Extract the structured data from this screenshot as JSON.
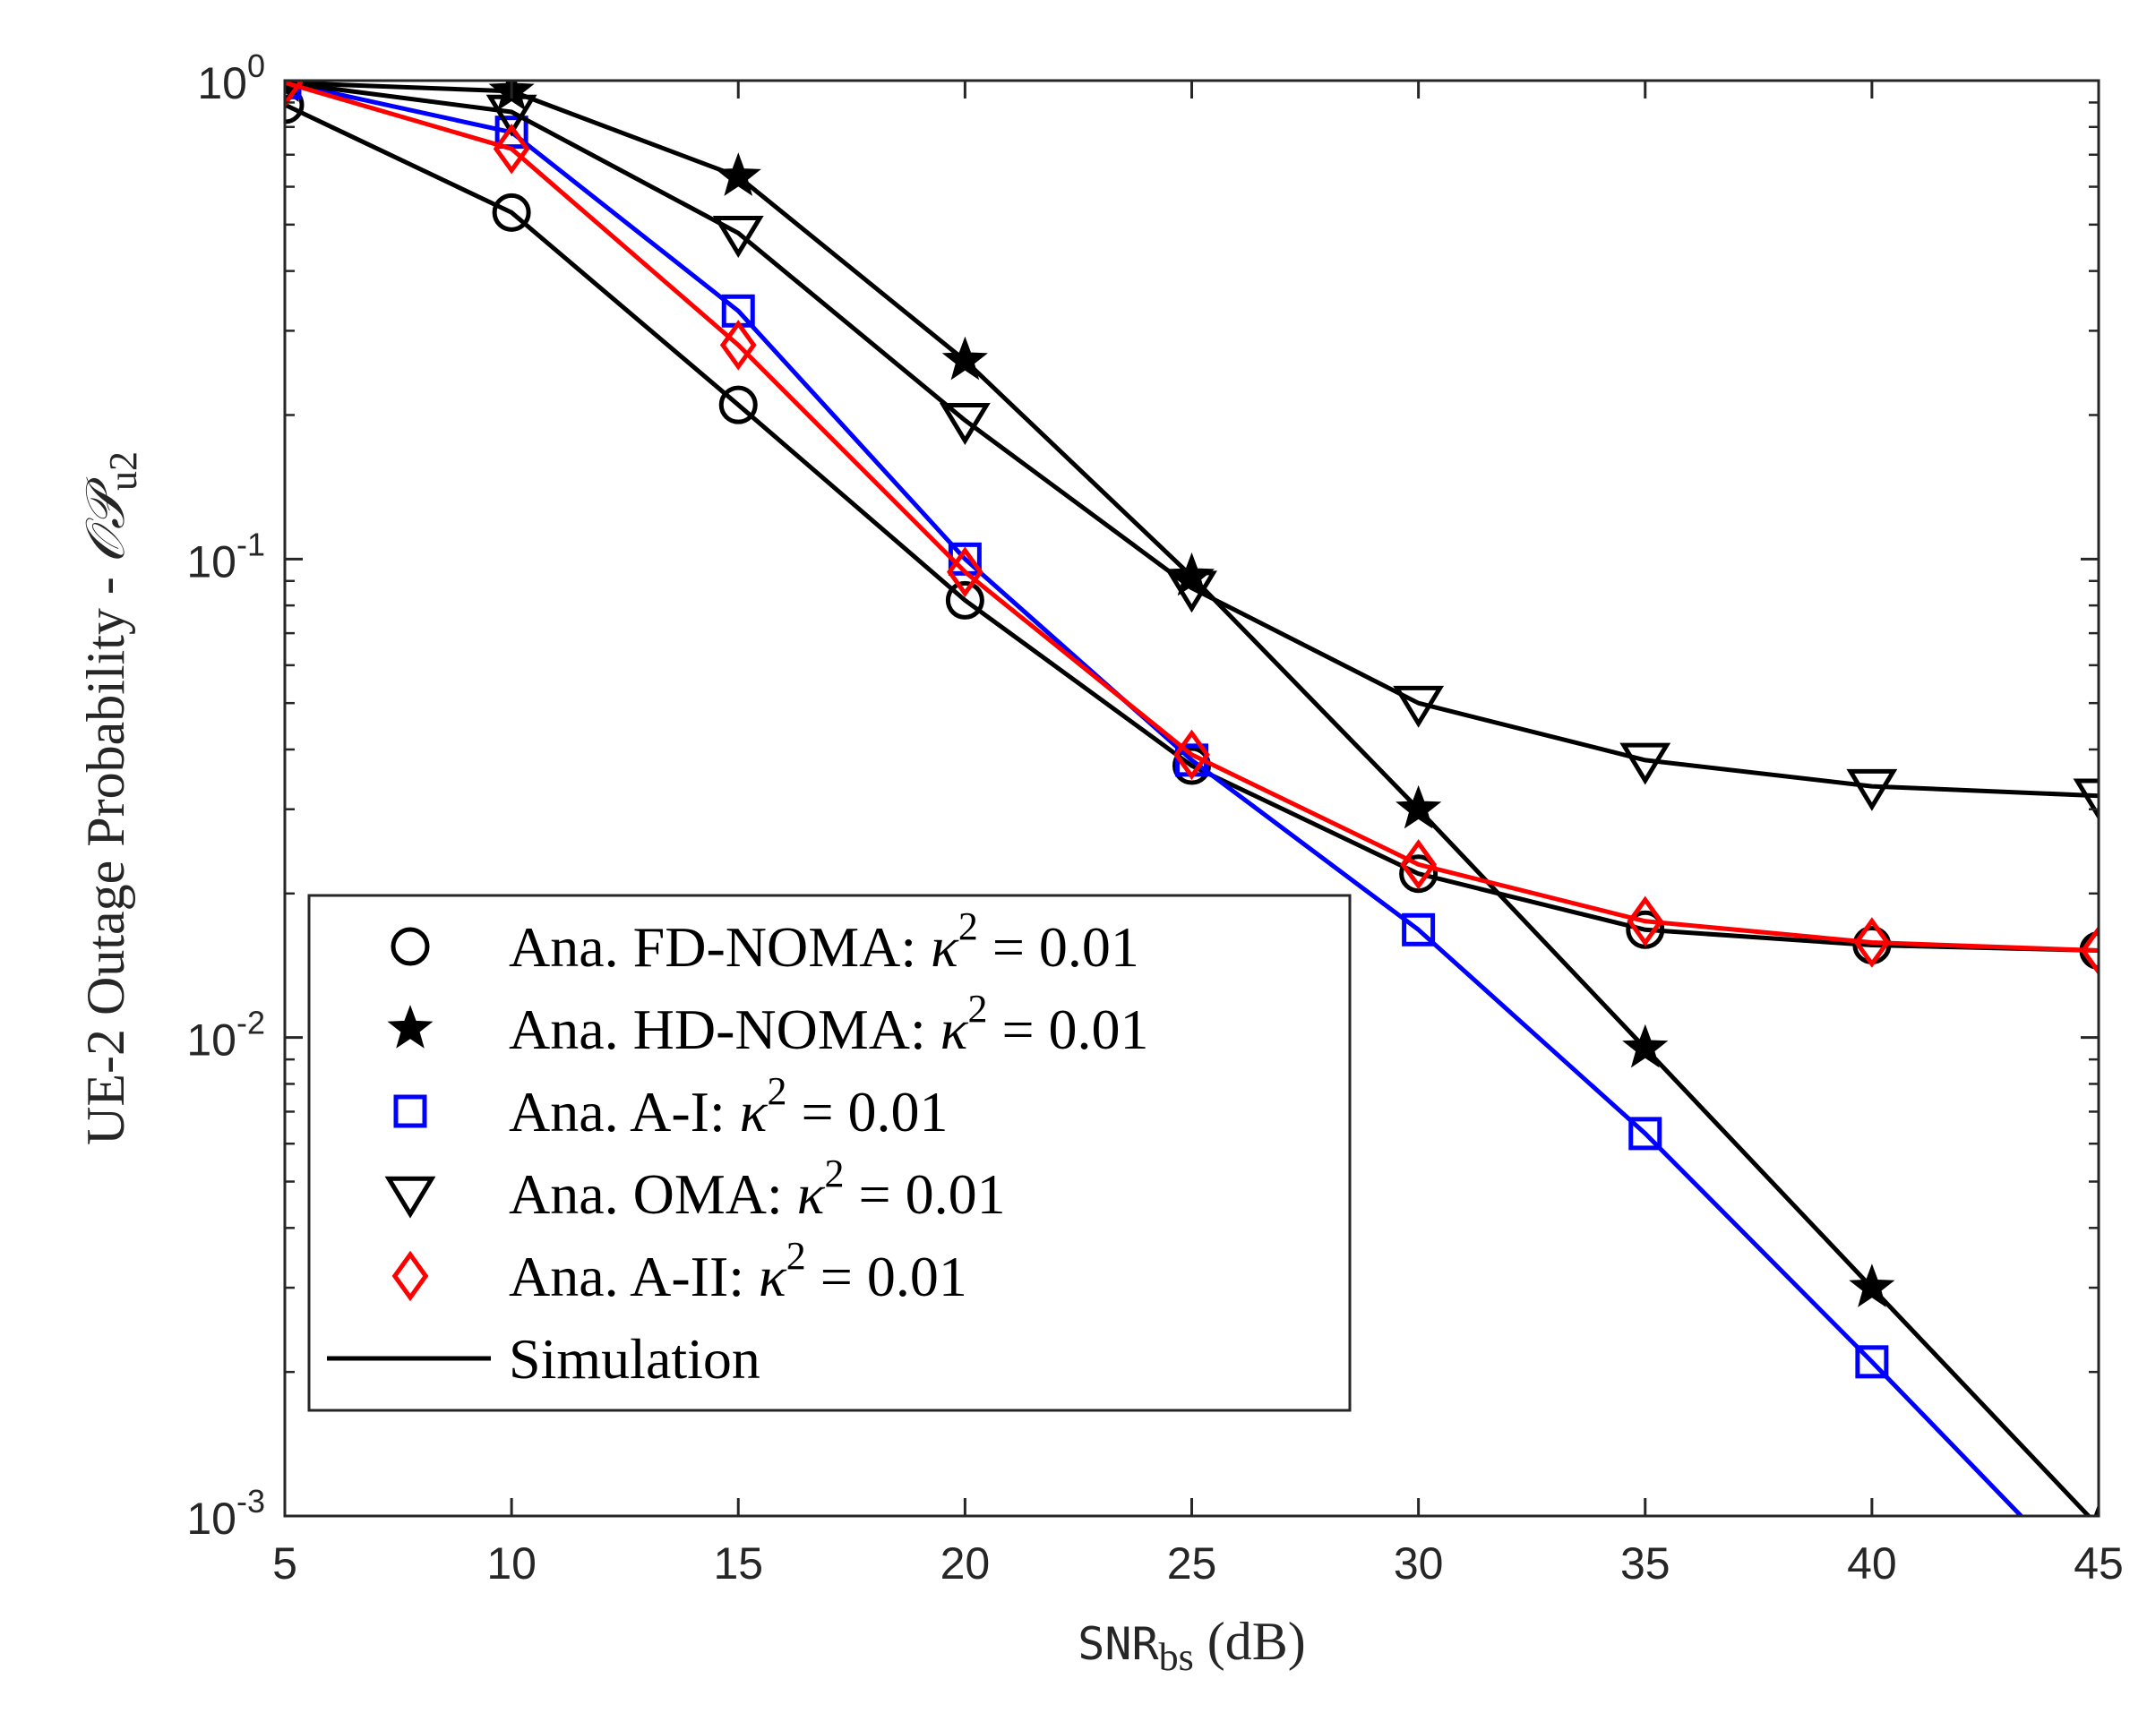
{
  "chart_data": {
    "type": "line",
    "x": [
      5,
      10,
      15,
      20,
      25,
      30,
      35,
      40,
      45
    ],
    "xlim": [
      5,
      45
    ],
    "ylim": [
      0.001,
      1
    ],
    "yscale": "log",
    "xticks": [
      "5",
      "10",
      "15",
      "20",
      "25",
      "30",
      "35",
      "40",
      "45"
    ],
    "yticks": [
      {
        "base": "10",
        "exp": "0",
        "value": 1
      },
      {
        "base": "10",
        "exp": "-1",
        "value": 0.1
      },
      {
        "base": "10",
        "exp": "-2",
        "value": 0.01
      },
      {
        "base": "10",
        "exp": "-3",
        "value": 0.001
      }
    ],
    "xlabel": {
      "main": "SNR",
      "sub": "bs",
      "unit": " (dB)"
    },
    "ylabel": {
      "main": "UE-2 Outage Probability - ",
      "symbol": "𝒪𝒫",
      "sub": "u2"
    },
    "grid": false,
    "legend_position": "bottom-left",
    "series": [
      {
        "name": "Ana. FD-NOMA: κ² = 0.01",
        "marker": "circle",
        "color": "#000000",
        "y": [
          0.89,
          0.53,
          0.21,
          0.082,
          0.037,
          0.022,
          0.0168,
          0.0156,
          0.0152
        ],
        "line_y": [
          0.89,
          0.53,
          0.21,
          0.082,
          0.037,
          0.022,
          0.0168,
          0.0156,
          0.0152
        ]
      },
      {
        "name": "Ana. HD-NOMA: κ² = 0.01",
        "marker": "star",
        "color": "#000000",
        "y": [
          0.99,
          0.95,
          0.63,
          0.26,
          0.092,
          0.03,
          0.0095,
          0.003,
          0.00095
        ],
        "line_y": [
          0.99,
          0.95,
          0.63,
          0.26,
          0.092,
          0.03,
          0.0095,
          0.003,
          0.00095
        ]
      },
      {
        "name": "Ana. A-I: κ² = 0.01",
        "marker": "square",
        "color": "#0000ff",
        "y": [
          0.99,
          0.78,
          0.33,
          0.1,
          0.038,
          0.0168,
          0.0063,
          0.0021,
          null
        ],
        "line_y": [
          0.99,
          0.78,
          0.33,
          0.1,
          0.038,
          0.0168,
          0.0063,
          0.0021,
          0.00068
        ]
      },
      {
        "name": "Ana. OMA: κ² = 0.01",
        "marker": "triangle-down",
        "color": "#000000",
        "y": [
          0.99,
          0.86,
          0.48,
          0.195,
          0.087,
          0.05,
          0.038,
          0.0335,
          0.032
        ],
        "line_y": [
          0.99,
          0.86,
          0.48,
          0.195,
          0.087,
          0.05,
          0.038,
          0.0335,
          0.032
        ]
      },
      {
        "name": "Ana. A-II: κ² = 0.01",
        "marker": "diamond",
        "color": "#ff0000",
        "y": [
          0.99,
          0.72,
          0.28,
          0.094,
          0.039,
          0.023,
          0.0175,
          0.0158,
          0.0152
        ],
        "line_y": [
          0.99,
          0.72,
          0.28,
          0.094,
          0.039,
          0.023,
          0.0175,
          0.0158,
          0.0152
        ]
      }
    ],
    "legend": {
      "entries": [
        {
          "prefix": "Ana.  FD-NOMA: ",
          "suffix": " = 0.01",
          "marker": "circle",
          "color": "#000000"
        },
        {
          "prefix": "Ana.  HD-NOMA: ",
          "suffix": " = 0.01",
          "marker": "star",
          "color": "#000000"
        },
        {
          "prefix": "Ana.  A-I: ",
          "suffix": " = 0.01",
          "marker": "square",
          "color": "#0000ff"
        },
        {
          "prefix": "Ana.  OMA: ",
          "suffix": " = 0.01",
          "marker": "triangle-down",
          "color": "#000000"
        },
        {
          "prefix": "Ana.  A-II: ",
          "suffix": " = 0.01",
          "marker": "diamond",
          "color": "#ff0000"
        },
        {
          "prefix": "Simulation",
          "suffix": "",
          "marker": "line",
          "color": "#000000"
        }
      ],
      "kappa_symbol": "κ",
      "kappa_exp": "2"
    }
  }
}
